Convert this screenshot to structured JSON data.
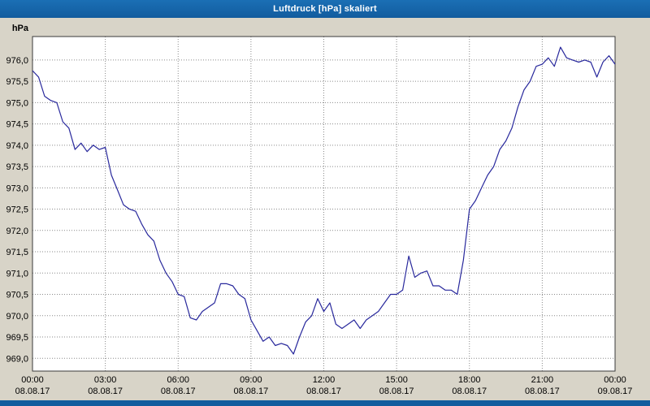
{
  "window": {
    "title": "Luftdruck [hPa] skaliert"
  },
  "chart_data": {
    "type": "line",
    "title": "Luftdruck [hPa] skaliert",
    "xlabel": "",
    "ylabel": "hPa",
    "xlim": [
      0,
      24
    ],
    "ylim": [
      968.7,
      976.55
    ],
    "grid": "dotted",
    "legend": "none",
    "colors": {
      "plot_bg": "#ffffff",
      "panel_bg": "#d8d4c8",
      "grid": "#8a8a8a",
      "frame": "#3a3a3a",
      "text": "#000000",
      "titlebar": "#125c9e"
    },
    "y_ticks": [
      {
        "value": 976.0,
        "label": "976,0"
      },
      {
        "value": 975.5,
        "label": "975,5"
      },
      {
        "value": 975.0,
        "label": "975,0"
      },
      {
        "value": 974.5,
        "label": "974,5"
      },
      {
        "value": 974.0,
        "label": "974,0"
      },
      {
        "value": 973.5,
        "label": "973,5"
      },
      {
        "value": 973.0,
        "label": "973,0"
      },
      {
        "value": 972.5,
        "label": "972,5"
      },
      {
        "value": 972.0,
        "label": "972,0"
      },
      {
        "value": 971.5,
        "label": "971,5"
      },
      {
        "value": 971.0,
        "label": "971,0"
      },
      {
        "value": 970.5,
        "label": "970,5"
      },
      {
        "value": 970.0,
        "label": "970,0"
      },
      {
        "value": 969.5,
        "label": "969,5"
      },
      {
        "value": 969.0,
        "label": "969,0"
      }
    ],
    "x_ticks": [
      {
        "hour": 0,
        "time": "00:00",
        "date": "08.08.17"
      },
      {
        "hour": 3,
        "time": "03:00",
        "date": "08.08.17"
      },
      {
        "hour": 6,
        "time": "06:00",
        "date": "08.08.17"
      },
      {
        "hour": 9,
        "time": "09:00",
        "date": "08.08.17"
      },
      {
        "hour": 12,
        "time": "12:00",
        "date": "08.08.17"
      },
      {
        "hour": 15,
        "time": "15:00",
        "date": "08.08.17"
      },
      {
        "hour": 18,
        "time": "18:00",
        "date": "08.08.17"
      },
      {
        "hour": 21,
        "time": "21:00",
        "date": "08.08.17"
      },
      {
        "hour": 24,
        "time": "00:00",
        "date": "09.08.17"
      }
    ],
    "series": [
      {
        "name": "Luftdruck",
        "unit": "hPa",
        "color": "#28289c",
        "points": [
          [
            0,
            975.75
          ],
          [
            0.25,
            975.6
          ],
          [
            0.5,
            975.15
          ],
          [
            0.75,
            975.05
          ],
          [
            1,
            975.0
          ],
          [
            1.25,
            974.55
          ],
          [
            1.5,
            974.4
          ],
          [
            1.75,
            973.9
          ],
          [
            2,
            974.05
          ],
          [
            2.25,
            973.85
          ],
          [
            2.5,
            974.0
          ],
          [
            2.75,
            973.9
          ],
          [
            3,
            973.95
          ],
          [
            3.25,
            973.3
          ],
          [
            3.5,
            972.95
          ],
          [
            3.75,
            972.6
          ],
          [
            4,
            972.5
          ],
          [
            4.25,
            972.45
          ],
          [
            4.5,
            972.15
          ],
          [
            4.75,
            971.9
          ],
          [
            5,
            971.75
          ],
          [
            5.25,
            971.3
          ],
          [
            5.5,
            971.0
          ],
          [
            5.75,
            970.8
          ],
          [
            6,
            970.5
          ],
          [
            6.25,
            970.45
          ],
          [
            6.5,
            969.95
          ],
          [
            6.75,
            969.9
          ],
          [
            7,
            970.1
          ],
          [
            7.25,
            970.2
          ],
          [
            7.5,
            970.3
          ],
          [
            7.75,
            970.75
          ],
          [
            8,
            970.75
          ],
          [
            8.25,
            970.7
          ],
          [
            8.5,
            970.5
          ],
          [
            8.75,
            970.4
          ],
          [
            9,
            969.9
          ],
          [
            9.25,
            969.65
          ],
          [
            9.5,
            969.4
          ],
          [
            9.75,
            969.5
          ],
          [
            10,
            969.3
          ],
          [
            10.25,
            969.35
          ],
          [
            10.5,
            969.3
          ],
          [
            10.75,
            969.1
          ],
          [
            11,
            969.5
          ],
          [
            11.25,
            969.85
          ],
          [
            11.5,
            970.0
          ],
          [
            11.75,
            970.4
          ],
          [
            12,
            970.1
          ],
          [
            12.25,
            970.3
          ],
          [
            12.5,
            969.8
          ],
          [
            12.75,
            969.7
          ],
          [
            13,
            969.8
          ],
          [
            13.25,
            969.9
          ],
          [
            13.5,
            969.7
          ],
          [
            13.75,
            969.9
          ],
          [
            14,
            970.0
          ],
          [
            14.25,
            970.1
          ],
          [
            14.5,
            970.3
          ],
          [
            14.75,
            970.5
          ],
          [
            15,
            970.5
          ],
          [
            15.25,
            970.6
          ],
          [
            15.5,
            971.4
          ],
          [
            15.75,
            970.9
          ],
          [
            16,
            971.0
          ],
          [
            16.25,
            971.05
          ],
          [
            16.5,
            970.7
          ],
          [
            16.75,
            970.7
          ],
          [
            17,
            970.6
          ],
          [
            17.25,
            970.6
          ],
          [
            17.5,
            970.5
          ],
          [
            17.75,
            971.3
          ],
          [
            18,
            972.5
          ],
          [
            18.25,
            972.7
          ],
          [
            18.5,
            973.0
          ],
          [
            18.75,
            973.3
          ],
          [
            19,
            973.5
          ],
          [
            19.25,
            973.9
          ],
          [
            19.5,
            974.1
          ],
          [
            19.75,
            974.4
          ],
          [
            20,
            974.9
          ],
          [
            20.25,
            975.3
          ],
          [
            20.5,
            975.5
          ],
          [
            20.75,
            975.85
          ],
          [
            21,
            975.9
          ],
          [
            21.25,
            976.05
          ],
          [
            21.5,
            975.85
          ],
          [
            21.75,
            976.3
          ],
          [
            22,
            976.05
          ],
          [
            22.25,
            976.0
          ],
          [
            22.5,
            975.95
          ],
          [
            22.75,
            976.0
          ],
          [
            23,
            975.95
          ],
          [
            23.25,
            975.6
          ],
          [
            23.5,
            975.95
          ],
          [
            23.75,
            976.1
          ],
          [
            24,
            975.9
          ]
        ]
      }
    ]
  }
}
